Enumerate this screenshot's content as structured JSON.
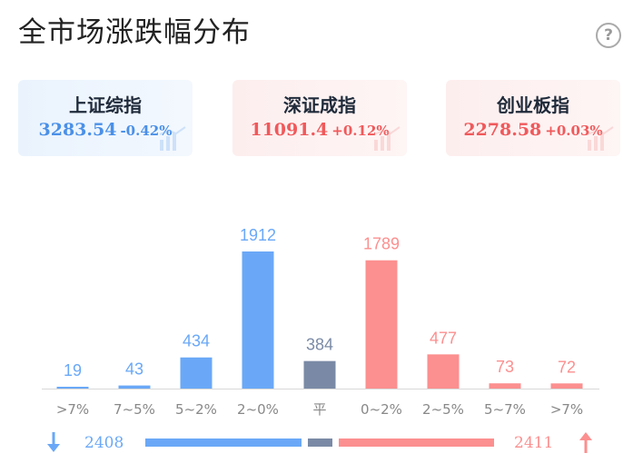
{
  "title": "全市场涨跌幅分布",
  "help_icon": "question-circle-icon",
  "indices": [
    {
      "name": "上证综指",
      "value": "3283.54",
      "change": "-0.42%",
      "color": "#4a90e8"
    },
    {
      "name": "深证成指",
      "value": "11091.4",
      "change": "+0.12%",
      "color": "#f0595b"
    },
    {
      "name": "创业板指",
      "value": "2278.58",
      "change": "+0.03%",
      "color": "#f0595b"
    }
  ],
  "chart_data": {
    "type": "bar",
    "categories": [
      ">7%",
      "7~5%",
      "5~2%",
      "2~0%",
      "平",
      "0~2%",
      "2~5%",
      "5~7%",
      ">7%"
    ],
    "values": [
      19,
      43,
      434,
      1912,
      384,
      1789,
      477,
      73,
      72
    ],
    "bar_colors": [
      "#6aa8f7",
      "#6aa8f7",
      "#6aa8f7",
      "#6aa8f7",
      "#7a8aa6",
      "#fc8f8f",
      "#fc8f8f",
      "#fc8f8f",
      "#fc8f8f"
    ],
    "label_colors": [
      "#6aa8f7",
      "#6aa8f7",
      "#6aa8f7",
      "#6aa8f7",
      "#7a8aa6",
      "#fc8f8f",
      "#fc8f8f",
      "#fc8f8f",
      "#fc8f8f"
    ],
    "ylim": [
      0,
      1912
    ],
    "grid": false
  },
  "summary": {
    "down_count": "2408",
    "up_count": "2411",
    "down_color": "#6aa8f7",
    "flat_color": "#7a8aa6",
    "up_color": "#fc8f8f",
    "down_icon": "arrow-down-icon",
    "up_icon": "arrow-up-icon"
  }
}
